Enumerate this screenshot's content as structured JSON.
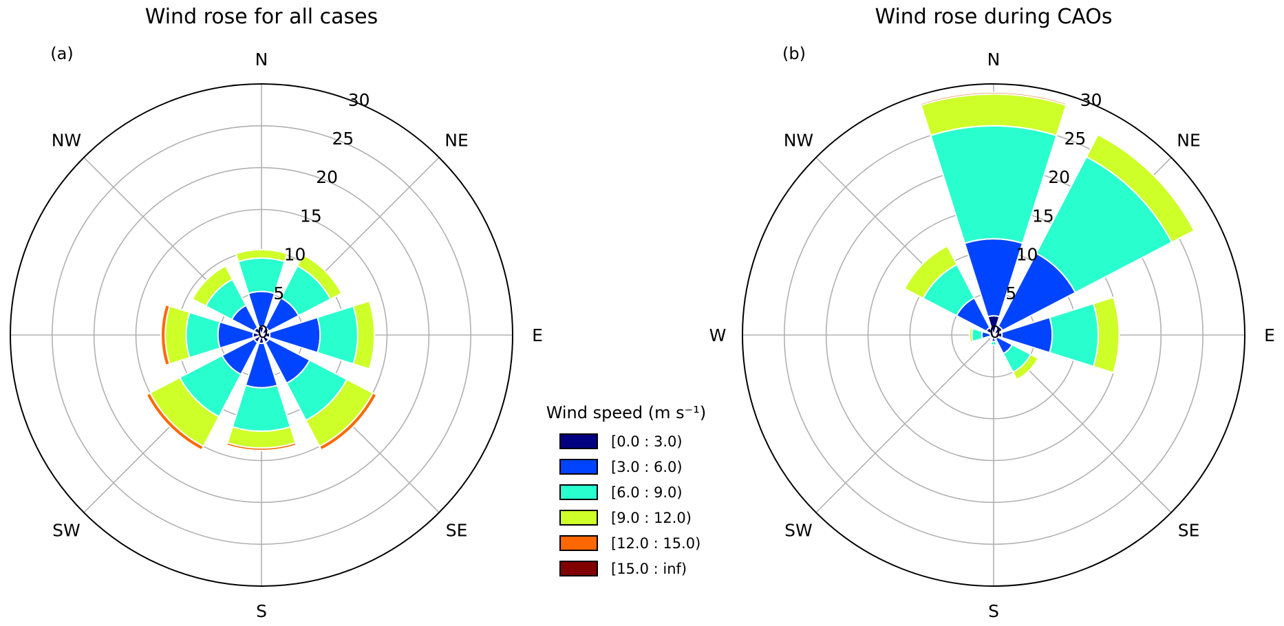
{
  "legend": {
    "title": "Wind speed (m s⁻¹)",
    "entries": [
      {
        "label": "[0.0 : 3.0)",
        "color": "#000080"
      },
      {
        "label": "[3.0 : 6.0)",
        "color": "#0044ff"
      },
      {
        "label": "[6.0 : 9.0)",
        "color": "#29ffce"
      },
      {
        "label": "[9.0 : 12.0)",
        "color": "#ceff29"
      },
      {
        "label": "[12.0 : 15.0)",
        "color": "#ff6800"
      },
      {
        "label": "[15.0 : inf)",
        "color": "#800000"
      }
    ]
  },
  "chart_data": [
    {
      "type": "wind-rose",
      "title": "Wind rose for all cases",
      "panel_label": "(a)",
      "directions": [
        "N",
        "NE",
        "E",
        "SE",
        "S",
        "SW",
        "W",
        "NW"
      ],
      "radial_ticks": [
        0,
        5,
        10,
        15,
        20,
        25,
        30
      ],
      "rmax": 30,
      "bins": [
        "[0.0 : 3.0)",
        "[3.0 : 6.0)",
        "[6.0 : 9.0)",
        "[9.0 : 12.0)",
        "[12.0 : 15.0)",
        "[15.0 : inf)"
      ],
      "cumulative_frequency_percent": {
        "N": [
          1.0,
          5.2,
          9.2,
          10.2,
          10.2,
          10.2
        ],
        "NE": [
          1.0,
          5.0,
          9.3,
          10.8,
          10.8,
          10.8
        ],
        "E": [
          1.0,
          7.0,
          11.5,
          13.5,
          13.5,
          13.5
        ],
        "SE": [
          1.0,
          6.5,
          11.5,
          15.0,
          15.5,
          15.5
        ],
        "S": [
          1.0,
          6.3,
          11.5,
          13.5,
          13.8,
          13.8
        ],
        "SW": [
          1.0,
          5.3,
          11.0,
          15.0,
          15.5,
          15.5
        ],
        "W": [
          1.0,
          5.2,
          9.0,
          11.5,
          12.0,
          12.0
        ],
        "NW": [
          1.0,
          4.0,
          7.5,
          9.3,
          9.3,
          9.3
        ]
      }
    },
    {
      "type": "wind-rose",
      "title": "Wind rose during CAOs",
      "panel_label": "(b)",
      "directions": [
        "N",
        "NE",
        "E",
        "SE",
        "S",
        "SW",
        "W",
        "NW"
      ],
      "radial_ticks": [
        0,
        5,
        10,
        15,
        20,
        25,
        30
      ],
      "rmax": 30,
      "bins": [
        "[0.0 : 3.0)",
        "[3.0 : 6.0)",
        "[6.0 : 9.0)",
        "[9.0 : 12.0)",
        "[12.0 : 15.0)",
        "[15.0 : inf)"
      ],
      "cumulative_frequency_percent": {
        "N": [
          2.3,
          11.5,
          25.0,
          28.8,
          29.0,
          29.0
        ],
        "NE": [
          1.2,
          11.0,
          24.0,
          27.0,
          27.0,
          27.0
        ],
        "E": [
          1.0,
          7.0,
          12.5,
          15.0,
          15.0,
          15.0
        ],
        "SE": [
          0.5,
          2.5,
          5.0,
          6.0,
          6.0,
          6.0
        ],
        "S": [
          0.3,
          0.8,
          1.2,
          1.2,
          1.2,
          1.2
        ],
        "SW": [
          0.2,
          0.4,
          0.5,
          0.5,
          0.5,
          0.5
        ],
        "W": [
          0.4,
          1.4,
          2.6,
          2.9,
          2.9,
          2.9
        ],
        "NW": [
          1.0,
          5.0,
          9.5,
          12.0,
          12.0,
          12.0
        ]
      }
    }
  ]
}
